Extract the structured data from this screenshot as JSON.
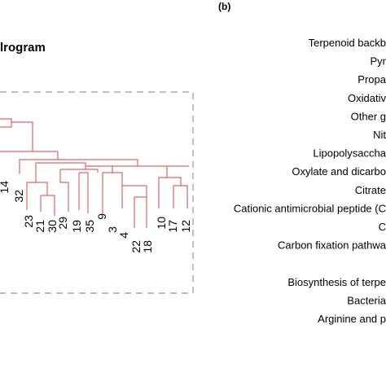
{
  "figure": {
    "panel_label": "(b)",
    "title_fragment": "lrogram"
  },
  "dendrogram": {
    "line_color": "#e06666",
    "box_color": "#999999",
    "leaves": [
      "14",
      "32",
      "23",
      "21",
      "30",
      "29",
      "19",
      "35",
      "9",
      "3",
      "4",
      "22",
      "18",
      "10",
      "17",
      "12"
    ]
  },
  "pathways": [
    "Terpenoid backb",
    "Pyr",
    "Propa",
    "Oxidativ",
    "Other g",
    "Nit",
    "Lipopolysaccha",
    "Oxylate and dicarbo",
    "Citrate",
    "Cationic antimicrobial peptide (C",
    "C",
    "Carbon fixation pathwa",
    "",
    "Biosynthesis of terpe",
    "Bacteria",
    "Arginine and p"
  ]
}
